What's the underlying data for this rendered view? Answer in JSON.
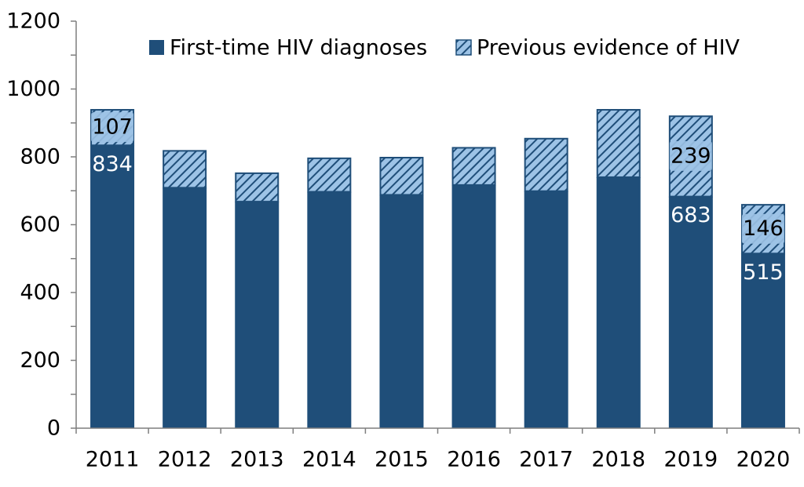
{
  "chart_data": {
    "type": "bar",
    "stacked": true,
    "categories": [
      "2011",
      "2012",
      "2013",
      "2014",
      "2015",
      "2016",
      "2017",
      "2018",
      "2019",
      "2020"
    ],
    "series": [
      {
        "name": "First-time HIV diagnoses",
        "values": [
          834,
          709,
          668,
          697,
          688,
          717,
          699,
          740,
          683,
          515
        ],
        "color": "#1f4e79",
        "pattern": "solid"
      },
      {
        "name": "Previous evidence of HIV",
        "values": [
          107,
          111,
          86,
          101,
          112,
          112,
          157,
          201,
          239,
          146
        ],
        "color": "#1f4e79",
        "pattern": "hatched",
        "fill": "#9dc3e6"
      }
    ],
    "data_labels": [
      {
        "category": "2011",
        "series": 1,
        "text": "107",
        "style": "boxed"
      },
      {
        "category": "2011",
        "series": 0,
        "text": "834",
        "style": "white"
      },
      {
        "category": "2019",
        "series": 1,
        "text": "239",
        "style": "boxed"
      },
      {
        "category": "2019",
        "series": 0,
        "text": "683",
        "style": "white"
      },
      {
        "category": "2020",
        "series": 1,
        "text": "146",
        "style": "boxed"
      },
      {
        "category": "2020",
        "series": 0,
        "text": "515",
        "style": "white"
      }
    ],
    "yticks": [
      0,
      200,
      400,
      600,
      800,
      1000,
      1200
    ],
    "ylim": [
      0,
      1200
    ],
    "title": "",
    "xlabel": "",
    "ylabel": "",
    "grid": false,
    "legend_position": "top"
  }
}
